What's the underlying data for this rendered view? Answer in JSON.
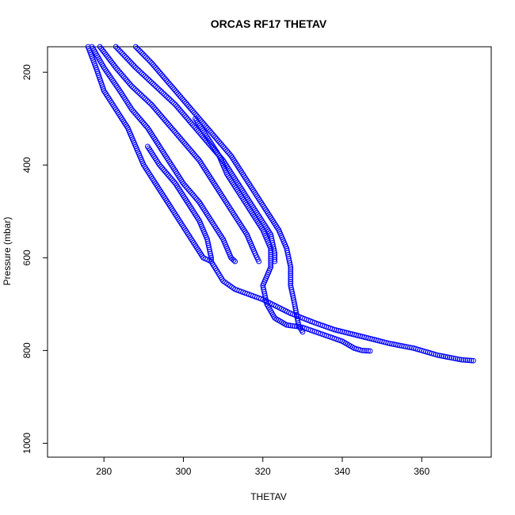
{
  "chart_data": {
    "type": "scatter",
    "title": "ORCAS RF17 THETAV",
    "xlabel": "THETAV",
    "ylabel": "Pressure (mbar)",
    "xlim": [
      265.8,
      377.5
    ],
    "ylim": [
      1030,
      145
    ],
    "y_reversed": true,
    "grid": false,
    "marker": "open-circle",
    "x_ticks": [
      280,
      300,
      320,
      340,
      360
    ],
    "y_ticks": [
      200,
      400,
      600,
      800,
      1000
    ],
    "colors": {
      "series": "#0000ff",
      "axis": "#000000"
    },
    "series": [
      {
        "points": [
          [
            276,
            145
          ],
          [
            278,
            190
          ],
          [
            280,
            240
          ],
          [
            283,
            280
          ],
          [
            286,
            320
          ],
          [
            288,
            360
          ],
          [
            290,
            400
          ],
          [
            293,
            440
          ],
          [
            296,
            480
          ],
          [
            299,
            520
          ],
          [
            302,
            560
          ],
          [
            305,
            600
          ],
          [
            307,
            608
          ],
          [
            310,
            650
          ],
          [
            313,
            668
          ],
          [
            320,
            690
          ],
          [
            327,
            720
          ],
          [
            333,
            740
          ],
          [
            338,
            755
          ],
          [
            345,
            770
          ],
          [
            352,
            785
          ],
          [
            358,
            795
          ],
          [
            364,
            810
          ],
          [
            370,
            820
          ],
          [
            373,
            822
          ]
        ]
      },
      {
        "points": [
          [
            277,
            145
          ],
          [
            280,
            190
          ],
          [
            284,
            240
          ],
          [
            287,
            280
          ],
          [
            291,
            320
          ],
          [
            294,
            360
          ],
          [
            297,
            400
          ],
          [
            300,
            440
          ],
          [
            304,
            480
          ],
          [
            307,
            520
          ],
          [
            310,
            560
          ],
          [
            312,
            600
          ],
          [
            313,
            608
          ]
        ]
      },
      {
        "points": [
          [
            279,
            145
          ],
          [
            283,
            190
          ],
          [
            287,
            230
          ],
          [
            292,
            270
          ],
          [
            296,
            310
          ],
          [
            300,
            350
          ],
          [
            304,
            390
          ],
          [
            307,
            430
          ],
          [
            310,
            470
          ],
          [
            313,
            510
          ],
          [
            316,
            550
          ],
          [
            318,
            590
          ],
          [
            319,
            608
          ]
        ]
      },
      {
        "points": [
          [
            283,
            145
          ],
          [
            288,
            190
          ],
          [
            293,
            230
          ],
          [
            298,
            270
          ],
          [
            302,
            310
          ],
          [
            306,
            350
          ],
          [
            310,
            390
          ],
          [
            313,
            430
          ],
          [
            316,
            470
          ],
          [
            319,
            510
          ],
          [
            322,
            550
          ],
          [
            323,
            590
          ],
          [
            323,
            608
          ]
        ]
      },
      {
        "points": [
          [
            288,
            145
          ],
          [
            292,
            180
          ],
          [
            296,
            220
          ],
          [
            300,
            260
          ],
          [
            304,
            300
          ],
          [
            308,
            340
          ],
          [
            312,
            380
          ],
          [
            315,
            420
          ],
          [
            318,
            460
          ],
          [
            321,
            500
          ],
          [
            324,
            540
          ],
          [
            326,
            580
          ],
          [
            327,
            620
          ],
          [
            327,
            660
          ],
          [
            328,
            700
          ],
          [
            329,
            745
          ],
          [
            330,
            760
          ]
        ]
      },
      {
        "points": [
          [
            303,
            300
          ],
          [
            306,
            340
          ],
          [
            309,
            380
          ],
          [
            311,
            420
          ],
          [
            314,
            460
          ],
          [
            317,
            500
          ],
          [
            320,
            540
          ],
          [
            322,
            580
          ],
          [
            322,
            620
          ],
          [
            320,
            660
          ],
          [
            321,
            700
          ],
          [
            323,
            730
          ],
          [
            326,
            745
          ],
          [
            330,
            750
          ],
          [
            335,
            765
          ],
          [
            340,
            780
          ],
          [
            343,
            795
          ],
          [
            345,
            800
          ],
          [
            347,
            801
          ]
        ]
      },
      {
        "points": [
          [
            291,
            360
          ],
          [
            294,
            400
          ],
          [
            298,
            440
          ],
          [
            301,
            480
          ],
          [
            304,
            520
          ],
          [
            306,
            560
          ],
          [
            307,
            600
          ],
          [
            307,
            608
          ]
        ]
      }
    ]
  }
}
